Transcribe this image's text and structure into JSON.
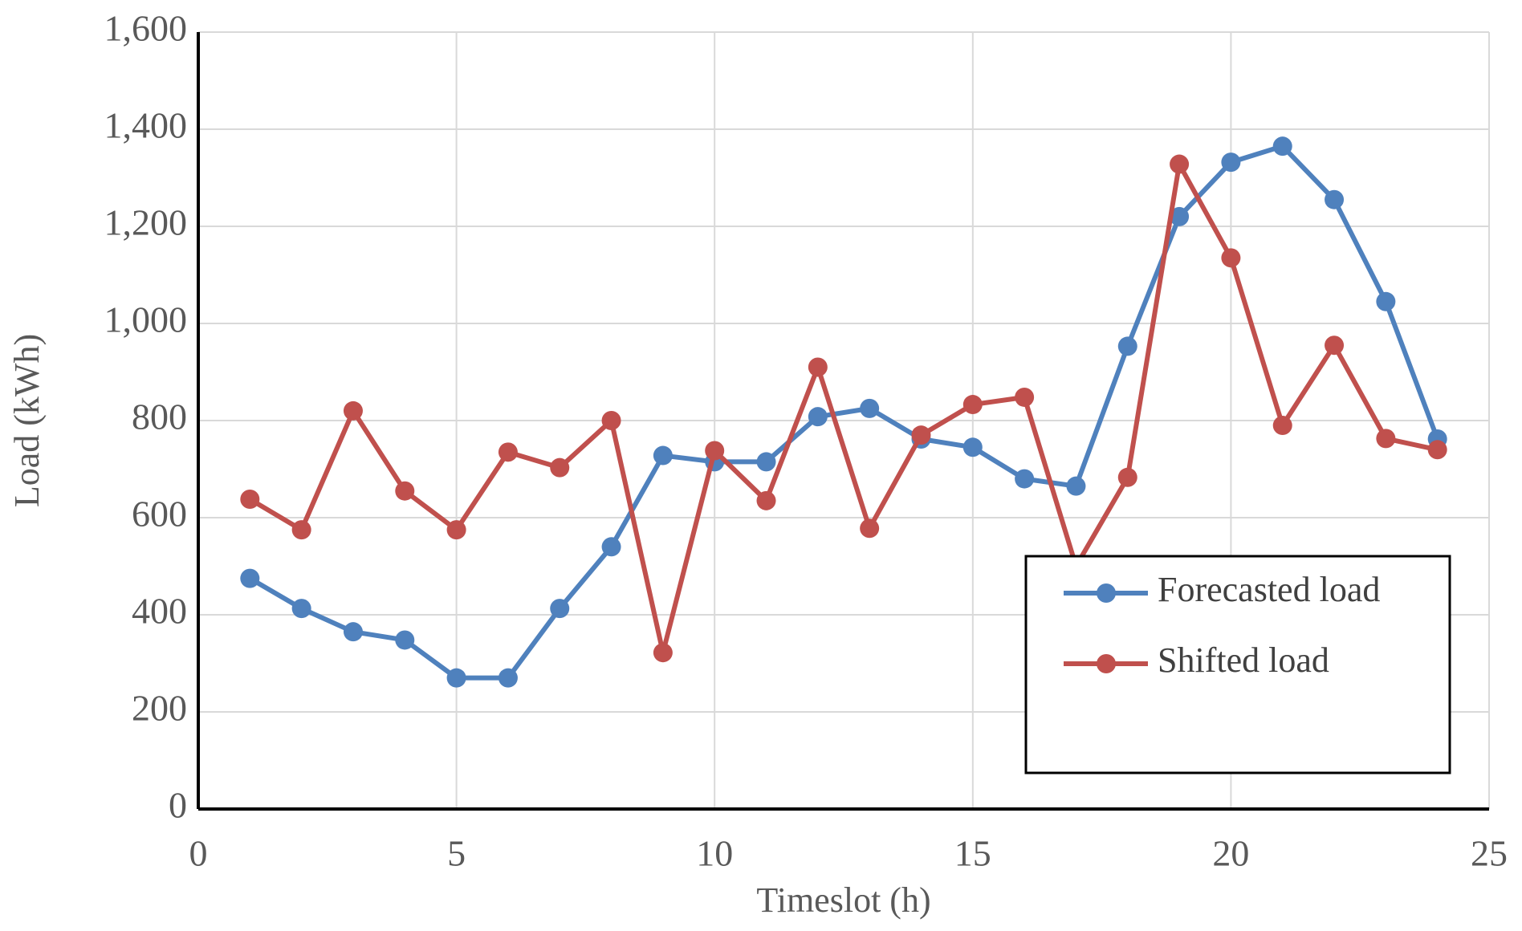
{
  "chart_data": {
    "type": "line",
    "x_label": "Timeslot (h)",
    "y_label": "Load (kWh)",
    "x": [
      1,
      2,
      3,
      4,
      5,
      6,
      7,
      8,
      9,
      10,
      11,
      12,
      13,
      14,
      15,
      16,
      17,
      18,
      19,
      20,
      21,
      22,
      23,
      24
    ],
    "series": [
      {
        "name": "Forecasted load",
        "color": "#4f81bd",
        "values": [
          475,
          413,
          365,
          348,
          270,
          270,
          413,
          540,
          728,
          715,
          715,
          808,
          825,
          762,
          745,
          680,
          665,
          953,
          1220,
          1332,
          1365,
          1255,
          1045,
          762
        ]
      },
      {
        "name": "Shifted load",
        "color": "#c0504d",
        "values": [
          638,
          575,
          820,
          655,
          575,
          735,
          703,
          800,
          322,
          738,
          635,
          910,
          578,
          770,
          833,
          848,
          500,
          683,
          1328,
          1135,
          790,
          955,
          763,
          740
        ]
      }
    ],
    "xlim": [
      0,
      25
    ],
    "xticks": [
      0,
      5,
      10,
      15,
      20,
      25
    ],
    "ylim": [
      0,
      1600
    ],
    "yticks": [
      0,
      200,
      400,
      600,
      800,
      {
        "value": 1000,
        "label": "1,000"
      },
      {
        "value": 1200,
        "label": "1,200"
      },
      {
        "value": 1400,
        "label": "1,400"
      },
      {
        "value": 1600,
        "label": "1,600"
      }
    ],
    "grid": true,
    "legend": "lower right"
  }
}
